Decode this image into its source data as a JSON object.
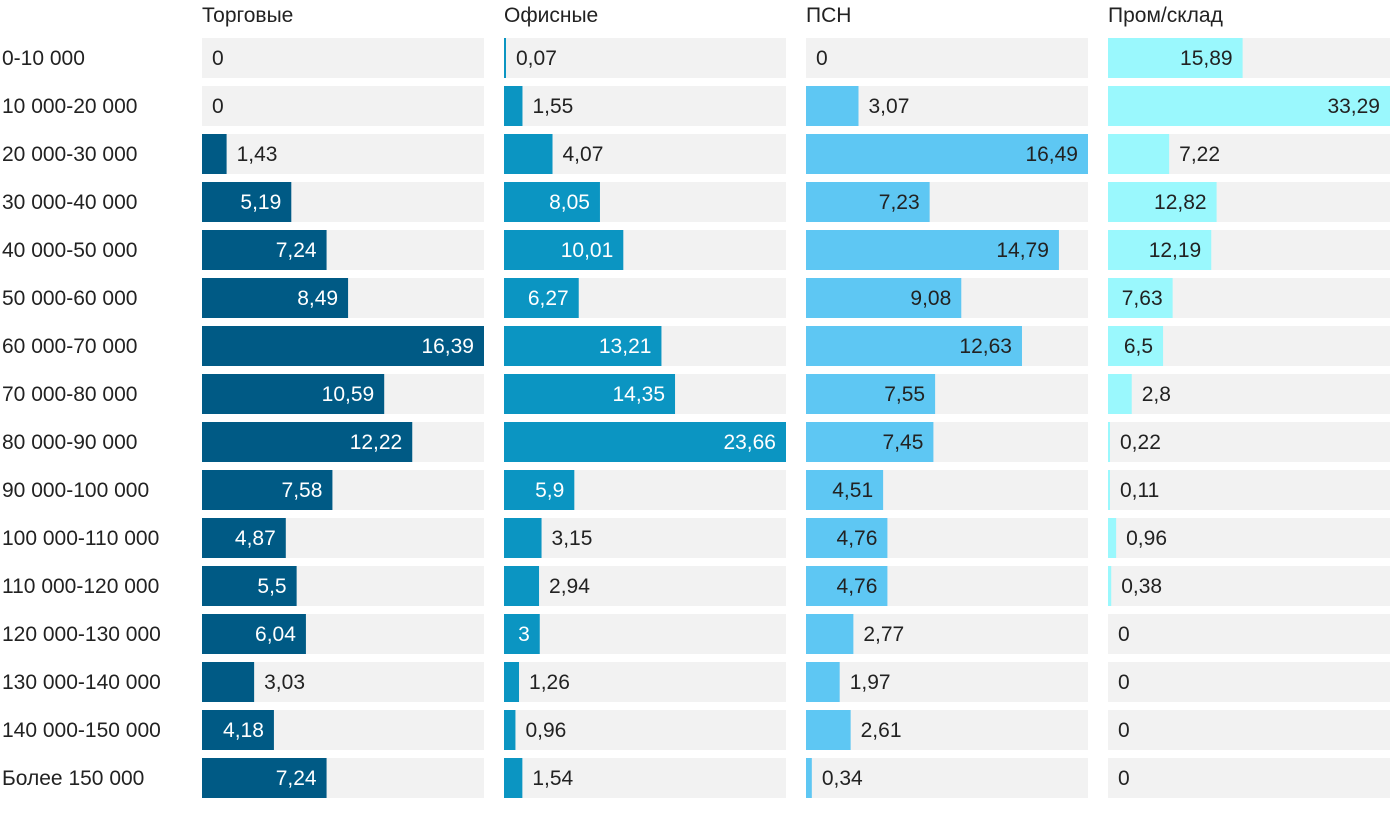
{
  "chart_data": {
    "type": "bar",
    "orientation": "horizontal",
    "categories": [
      "0-10 000",
      "10 000-20 000",
      "20 000-30 000",
      "30 000-40 000",
      "40 000-50 000",
      "50 000-60 000",
      "60 000-70 000",
      "70 000-80 000",
      "80 000-90 000",
      "90 000-100 000",
      "100 000-110 000",
      "110 000-120 000",
      "120 000-130 000",
      "130 000-140 000",
      "140 000-150 000",
      "Более 150 000"
    ],
    "series": [
      {
        "name": "Торговые",
        "color": "#005a85",
        "values": [
          0,
          0,
          1.43,
          5.19,
          7.24,
          8.49,
          16.39,
          10.59,
          12.22,
          7.58,
          4.87,
          5.5,
          6.04,
          3.03,
          4.18,
          7.24
        ]
      },
      {
        "name": "Офисные",
        "color": "#0b95c2",
        "values": [
          0.07,
          1.55,
          4.07,
          8.05,
          10.01,
          6.27,
          13.21,
          14.35,
          23.66,
          5.9,
          3.15,
          2.94,
          3,
          1.26,
          0.96,
          1.54
        ]
      },
      {
        "name": "ПСН",
        "color": "#5ec7f3",
        "values": [
          0,
          3.07,
          16.49,
          7.23,
          14.79,
          9.08,
          12.63,
          7.55,
          7.45,
          4.51,
          4.76,
          4.76,
          2.77,
          1.97,
          2.61,
          0.34
        ]
      },
      {
        "name": "Пром/склад",
        "color": "#9af8fd",
        "values": [
          15.89,
          33.29,
          7.22,
          12.82,
          12.19,
          7.63,
          6.5,
          2.8,
          0.22,
          0.11,
          0.96,
          0.38,
          0,
          0,
          0,
          0
        ]
      }
    ],
    "panel_max": [
      16.39,
      23.66,
      16.49,
      33.29
    ],
    "decimal_separator": ","
  }
}
